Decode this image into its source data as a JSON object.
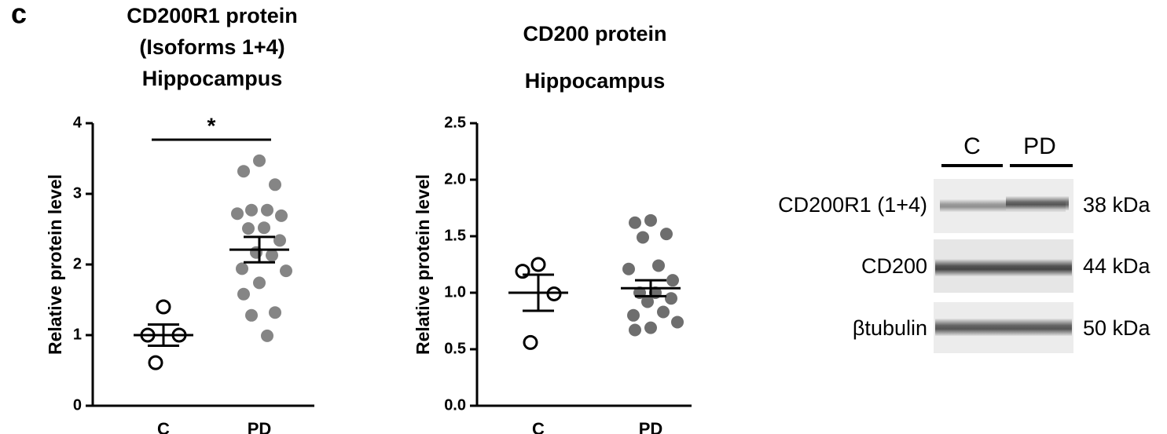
{
  "panel_label": "c",
  "chart_data": [
    {
      "type": "strip",
      "title": [
        "CD200R1 protein",
        "(Isoforms 1+4)",
        "Hippocampus"
      ],
      "ylabel": "Relative protein level",
      "categories": [
        "C",
        "PD"
      ],
      "values": [
        [
          1.4,
          1.0,
          1.0,
          0.61
        ],
        [
          3.47,
          3.32,
          3.13,
          2.77,
          2.77,
          2.72,
          2.69,
          2.52,
          2.51,
          2.34,
          2.17,
          2.13,
          1.94,
          1.91,
          1.74,
          1.58,
          1.32,
          1.28,
          0.99
        ]
      ],
      "mean": [
        1.0,
        2.21
      ],
      "sem": [
        0.15,
        0.18
      ],
      "marker_fill": [
        "none",
        "#858585"
      ],
      "ylim": [
        0,
        4
      ],
      "yticks": [
        0,
        1,
        2,
        3,
        4
      ],
      "significance": "*"
    },
    {
      "type": "strip",
      "title": [
        "CD200 protein",
        "Hippocampus"
      ],
      "ylabel": "Relative protein level",
      "categories": [
        "C",
        "PD"
      ],
      "values": [
        [
          1.25,
          1.19,
          0.99,
          0.56
        ],
        [
          1.64,
          1.62,
          1.52,
          1.49,
          1.24,
          1.21,
          1.11,
          1.0,
          1.0,
          0.95,
          0.92,
          0.83,
          0.8,
          0.74,
          0.69,
          0.67
        ]
      ],
      "mean": [
        1.0,
        1.04
      ],
      "sem": [
        0.16,
        0.07
      ],
      "marker_fill": [
        "none",
        "#6e6e6e"
      ],
      "ylim": [
        0,
        2.5
      ],
      "yticks": [
        {
          "value": 0,
          "label": "0.0"
        },
        {
          "value": 0.5,
          "label": "0.5"
        },
        {
          "value": 1,
          "label": "1.0"
        },
        {
          "value": 1.5,
          "label": "1.5"
        },
        {
          "value": 2,
          "label": "2.0"
        },
        {
          "value": 2.5,
          "label": "2.5"
        }
      ]
    }
  ],
  "blot": {
    "groups": [
      "C",
      "PD"
    ],
    "rows": [
      {
        "label": "CD200R1 (1+4)",
        "size": "38 kDa"
      },
      {
        "label": "CD200",
        "size": "44 kDa"
      },
      {
        "label": "βtubulin",
        "size": "50 kDa"
      }
    ]
  }
}
